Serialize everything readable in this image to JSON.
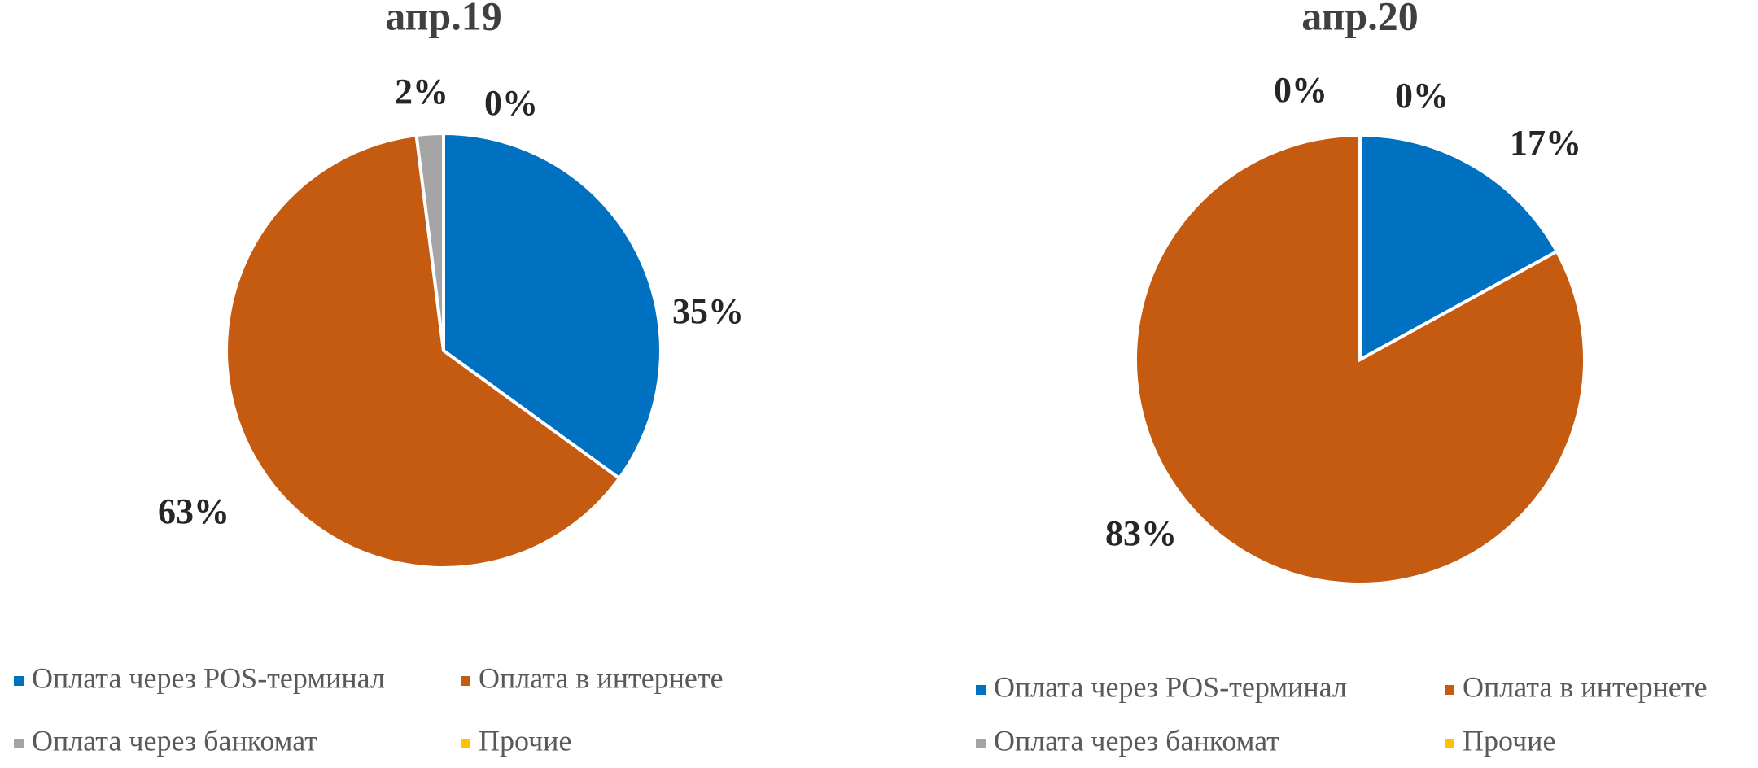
{
  "chart_data": [
    {
      "type": "pie",
      "title": "апр.19",
      "categories": [
        "Оплата через POS-терминал",
        "Оплата в интернете",
        "Оплата через банкомат",
        "Прочие"
      ],
      "values": [
        35,
        63,
        2,
        0
      ],
      "value_labels": [
        "35%",
        "63%",
        "2%",
        "0%"
      ],
      "colors": [
        "#0070c0",
        "#c55a11",
        "#a5a5a5",
        "#ffc000"
      ]
    },
    {
      "type": "pie",
      "title": "апр.20",
      "categories": [
        "Оплата через POS-терминал",
        "Оплата в интернете",
        "Оплата через банкомат",
        "Прочие"
      ],
      "values": [
        17,
        83,
        0,
        0
      ],
      "value_labels": [
        "17%",
        "83%",
        "0%",
        "0%"
      ],
      "colors": [
        "#0070c0",
        "#c55a11",
        "#a5a5a5",
        "#ffc000"
      ]
    }
  ]
}
